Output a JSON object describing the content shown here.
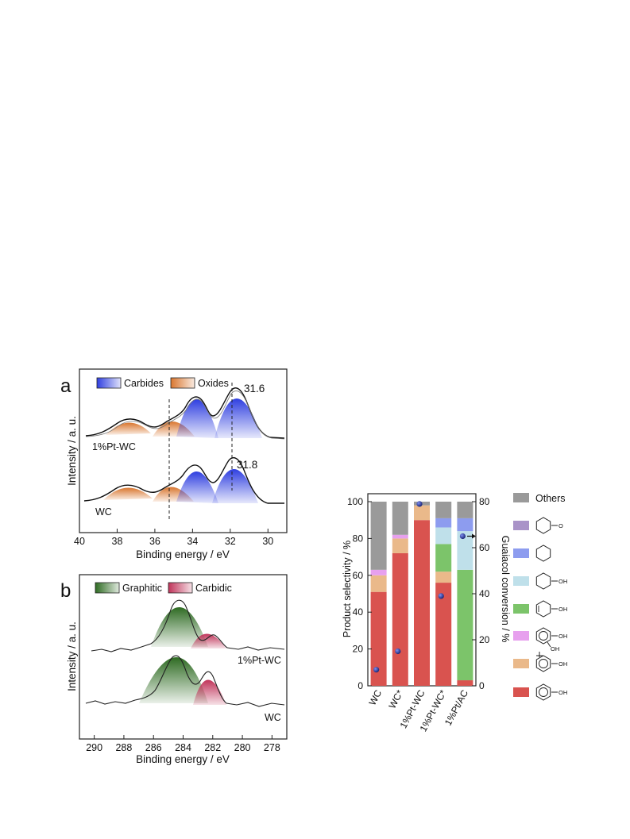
{
  "colors": {
    "carbides": "#2f3fe0",
    "oxides": "#d9762f",
    "graphitic": "#2e6b22",
    "carbidic": "#c0345a",
    "others": "#9a9a9a",
    "cyclohexanone": "#a993c8",
    "cyclohexane": "#8d9cef",
    "cyclohexanol": "#bfe0ea",
    "cyclohexenol": "#7cc46a",
    "catechol": "#e7a0ee",
    "cresol": "#eab98a",
    "phenol": "#d9534f",
    "conversion_marker": "#1a2a8c"
  },
  "chart_data": [
    {
      "panel": "a",
      "type": "line",
      "xlabel": "Binding energy / eV",
      "ylabel": "Intensity / a. u.",
      "xlim": [
        40,
        29
      ],
      "xticks": [
        40,
        38,
        36,
        34,
        32,
        30
      ],
      "legend": [
        "Carbides",
        "Oxides"
      ],
      "legend_position": "top-left",
      "series": [
        {
          "name": "1%Pt-WC",
          "peaks": [
            {
              "type": "Oxides",
              "center": 37.6
            },
            {
              "type": "Oxides",
              "center": 35.3
            },
            {
              "type": "Carbides",
              "center": 33.8
            },
            {
              "type": "Carbides",
              "center": 31.6
            }
          ]
        },
        {
          "name": "WC",
          "peaks": [
            {
              "type": "Oxides",
              "center": 37.7
            },
            {
              "type": "Oxides",
              "center": 35.4
            },
            {
              "type": "Carbides",
              "center": 33.9
            },
            {
              "type": "Carbides",
              "center": 31.8
            }
          ]
        }
      ],
      "annotations": [
        "31.6",
        "31.8"
      ],
      "reference_lines": [
        35.3,
        31.8
      ]
    },
    {
      "panel": "b",
      "type": "line",
      "xlabel": "Binding energy / eV",
      "ylabel": "Intensity / a. u.",
      "xlim": [
        291,
        277
      ],
      "xticks": [
        290,
        288,
        286,
        284,
        282,
        280,
        278
      ],
      "legend": [
        "Graphitic",
        "Carbidic"
      ],
      "legend_position": "top-left",
      "series": [
        {
          "name": "1%Pt-WC",
          "peaks": [
            {
              "type": "Graphitic",
              "center": 284.5
            },
            {
              "type": "Carbidic",
              "center": 282.7
            }
          ]
        },
        {
          "name": "WC",
          "peaks": [
            {
              "type": "Graphitic",
              "center": 284.5
            },
            {
              "type": "Carbidic",
              "center": 282.6
            }
          ]
        }
      ]
    },
    {
      "panel": "c",
      "type": "bar",
      "stacked": true,
      "ylabel": "Product selectivity / %",
      "y2label": "Guaiacol conversion / %",
      "ylim": [
        0,
        100
      ],
      "y2lim": [
        0,
        80
      ],
      "yticks": [
        0,
        20,
        40,
        60,
        80,
        100
      ],
      "y2ticks": [
        0,
        20,
        40,
        60,
        80
      ],
      "categories": [
        "WC",
        "WC*",
        "1%Pt-WC",
        "1%Pt-WC*",
        "1%Pt/AC"
      ],
      "series": [
        {
          "name": "Phenol",
          "values": [
            51,
            72,
            90,
            56,
            3
          ]
        },
        {
          "name": "Cresol",
          "values": [
            9,
            8,
            8,
            6,
            0
          ]
        },
        {
          "name": "Catechol",
          "values": [
            3,
            2,
            0,
            0,
            0
          ]
        },
        {
          "name": "Cyclohexenol",
          "values": [
            0,
            0,
            0,
            15,
            60
          ]
        },
        {
          "name": "Cyclohexanol",
          "values": [
            0,
            0,
            0,
            9,
            21
          ]
        },
        {
          "name": "Cyclohexane",
          "values": [
            0,
            0,
            0,
            5,
            7
          ]
        },
        {
          "name": "Cyclohexanone",
          "values": [
            0,
            0,
            0,
            0,
            0
          ]
        },
        {
          "name": "Others",
          "values": [
            37,
            18,
            2,
            9,
            9
          ]
        }
      ],
      "conversion": [
        7,
        15,
        79,
        39,
        65
      ],
      "legend_label_others": "Others",
      "legend_position": "right"
    }
  ],
  "panel_labels": {
    "a": "a",
    "b": "b"
  },
  "annotations": {
    "a_top": "31.6",
    "a_bottom": "31.8"
  },
  "sample_labels": {
    "a_top": "1%Pt-WC",
    "a_bottom": "WC",
    "b_top": "1%Pt-WC",
    "b_bottom": "WC"
  },
  "structure_labels": {
    "oh": "OH",
    "o": "O"
  }
}
